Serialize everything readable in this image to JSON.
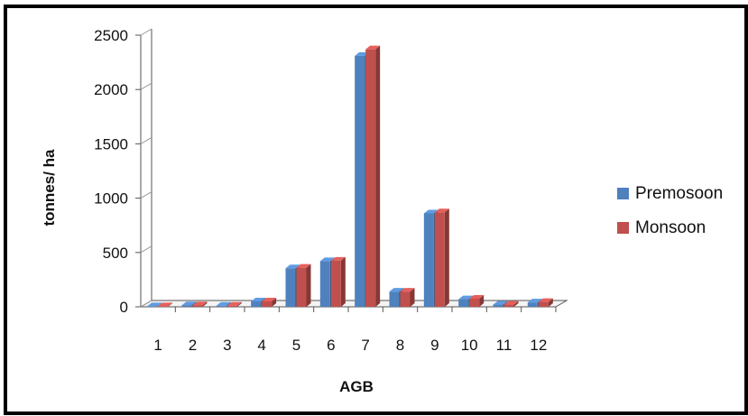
{
  "chart_data": {
    "type": "bar",
    "categories": [
      "1",
      "2",
      "3",
      "4",
      "5",
      "6",
      "7",
      "8",
      "9",
      "10",
      "11",
      "12"
    ],
    "series": [
      {
        "name": "Premosoon",
        "values": [
          5,
          15,
          10,
          50,
          355,
          420,
          2310,
          140,
          860,
          70,
          20,
          40
        ],
        "color": "#4f81bd"
      },
      {
        "name": "Monsoon",
        "values": [
          5,
          15,
          10,
          50,
          360,
          425,
          2370,
          140,
          870,
          75,
          20,
          45
        ],
        "color": "#c0504d"
      }
    ],
    "yticks": [
      "0",
      "500",
      "1000",
      "1500",
      "2000",
      "2500"
    ],
    "ylim": [
      0,
      2500
    ],
    "xlabel": "AGB",
    "ylabel": "tonnes/ ha",
    "legend_position": "right",
    "style": "3d-clustered-column"
  }
}
